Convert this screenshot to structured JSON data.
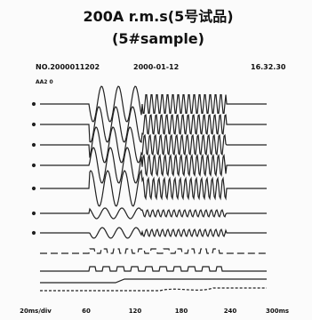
{
  "title": "200A r.m.s(5号试品)",
  "subtitle": "(5#sample)",
  "record": {
    "number": "NO.2000011202",
    "date": "2000-01-12",
    "time": "16.32.30",
    "code": "AA2 0"
  },
  "time_axis": {
    "labels": [
      "20ms/div",
      "60",
      "120",
      "180",
      "240",
      "300ms"
    ]
  }
}
